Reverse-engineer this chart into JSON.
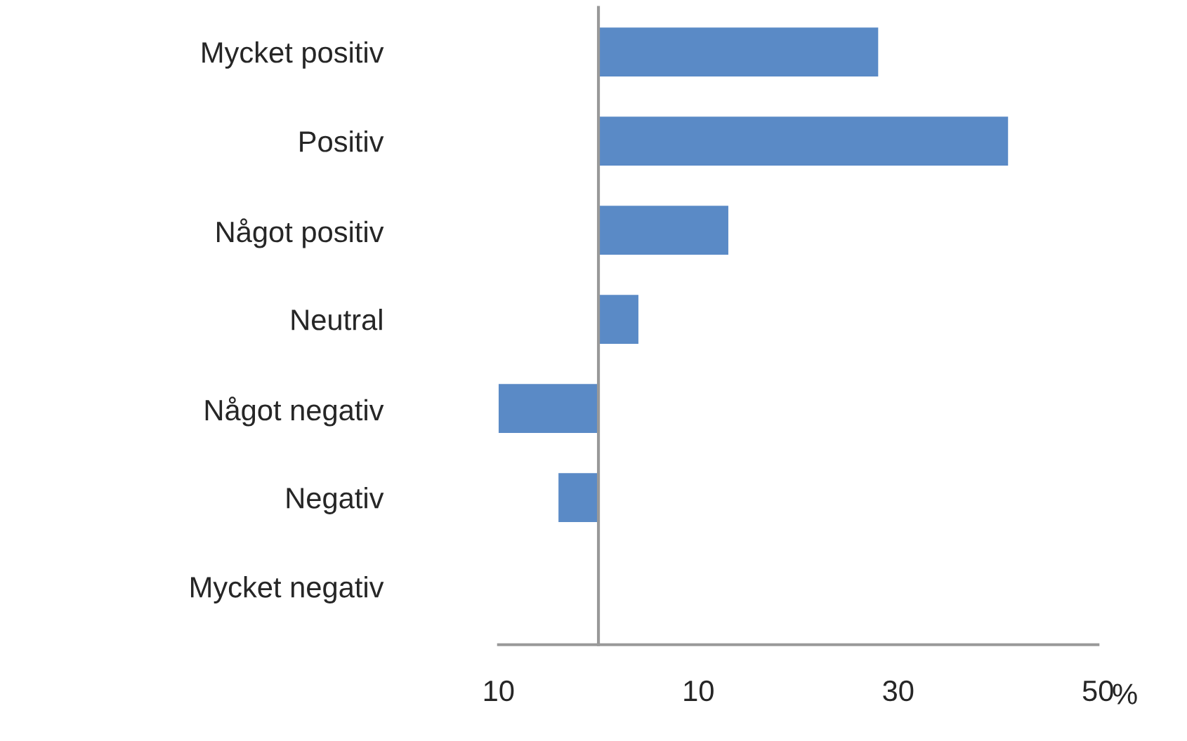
{
  "chart_data": {
    "type": "bar",
    "orientation": "horizontal",
    "categories": [
      "Mycket positiv",
      "Positiv",
      "Något positiv",
      "Neutral",
      "Något negativ",
      "Negativ",
      "Mycket negativ"
    ],
    "values": [
      28,
      41,
      13,
      4,
      -10,
      -4,
      0
    ],
    "color": "#5a8ac6",
    "xlim": [
      -10,
      50
    ],
    "xticks": [
      {
        "value": -10,
        "label": "10"
      },
      10,
      30,
      50
    ],
    "xlabel": "%",
    "grid": false
  }
}
